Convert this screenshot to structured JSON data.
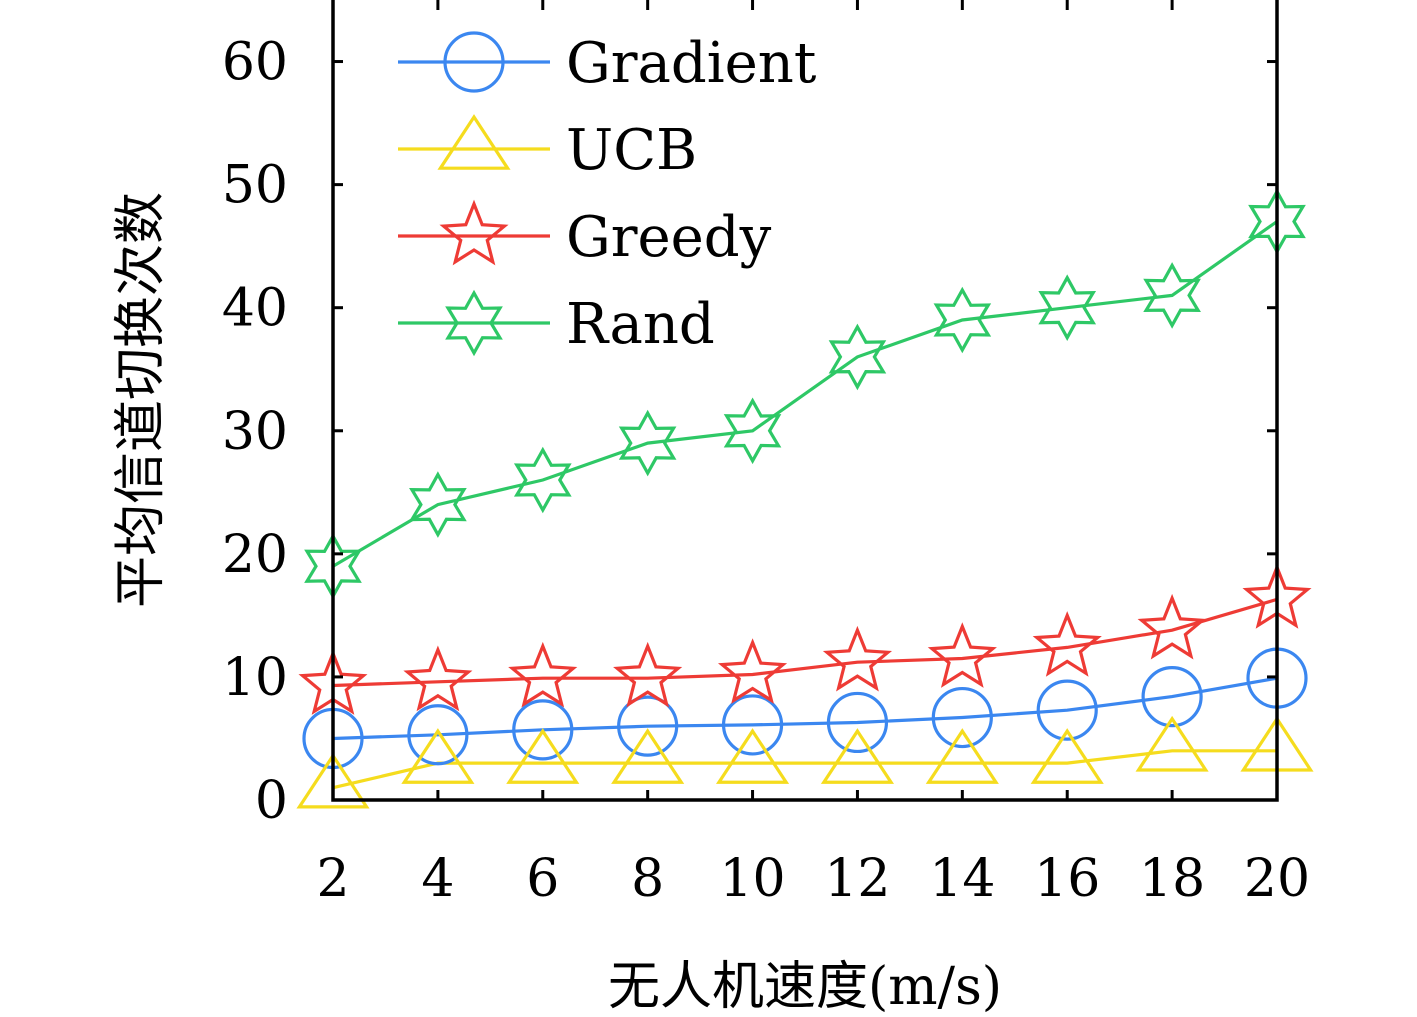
{
  "chart_data": {
    "type": "line",
    "xlabel": "无人机速度(m/s)",
    "ylabel": "平均信道切换次数",
    "x": [
      2,
      4,
      6,
      8,
      10,
      12,
      14,
      16,
      18,
      20
    ],
    "xlim": [
      2,
      20
    ],
    "ylim": [
      0,
      65
    ],
    "xticks": [
      "2",
      "4",
      "6",
      "8",
      "10",
      "12",
      "14",
      "16",
      "18",
      "20"
    ],
    "yticks": [
      "0",
      "10",
      "20",
      "30",
      "40",
      "50",
      "60"
    ],
    "grid": false,
    "legend_position": "top-left",
    "series": [
      {
        "name": "Gradient",
        "marker": "circle",
        "color": "#3b87f0",
        "values": [
          5.0,
          5.3,
          5.7,
          6.0,
          6.1,
          6.3,
          6.7,
          7.3,
          8.4,
          9.9
        ]
      },
      {
        "name": "UCB",
        "marker": "triangle",
        "color": "#f5dc1e",
        "values": [
          1.0,
          3.0,
          3.0,
          3.0,
          3.0,
          3.0,
          3.0,
          3.0,
          4.0,
          4.0
        ]
      },
      {
        "name": "Greedy",
        "marker": "star5",
        "color": "#ee3b35",
        "values": [
          9.3,
          9.6,
          9.9,
          9.9,
          10.2,
          11.2,
          11.5,
          12.4,
          13.8,
          16.3
        ]
      },
      {
        "name": "Rand",
        "marker": "star6",
        "color": "#2ec866",
        "values": [
          19.0,
          24.0,
          26.0,
          29.0,
          30.0,
          36.0,
          39.0,
          40.0,
          41.0,
          47.0
        ]
      }
    ]
  }
}
